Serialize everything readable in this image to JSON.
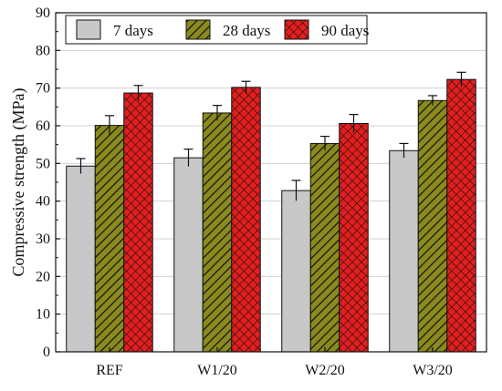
{
  "chart_data": {
    "type": "bar",
    "categories": [
      "REF",
      "W1/20",
      "W2/20",
      "W3/20"
    ],
    "series": [
      {
        "name": "7 days",
        "values": [
          49.3,
          51.5,
          42.8,
          53.4
        ],
        "errors": [
          2.0,
          2.3,
          2.7,
          1.9
        ],
        "color": "#c8c8c8",
        "pattern": "none"
      },
      {
        "name": "28 days",
        "values": [
          60.1,
          63.4,
          55.3,
          66.7
        ],
        "errors": [
          2.6,
          2.0,
          1.9,
          1.3
        ],
        "color": "#8a8a1e",
        "pattern": "diagonal"
      },
      {
        "name": "90 days",
        "values": [
          68.7,
          70.2,
          60.6,
          72.3
        ],
        "errors": [
          2.0,
          1.6,
          2.4,
          1.9
        ],
        "color": "#e41e1e",
        "pattern": "crosshatch"
      }
    ],
    "xlabel": "",
    "ylabel": "Compressive strength (MPa)",
    "ylim": [
      0,
      90
    ],
    "yticks": [
      0,
      10,
      20,
      30,
      40,
      50,
      60,
      70,
      80,
      90
    ],
    "grid": true,
    "legend_position": "top-left"
  }
}
